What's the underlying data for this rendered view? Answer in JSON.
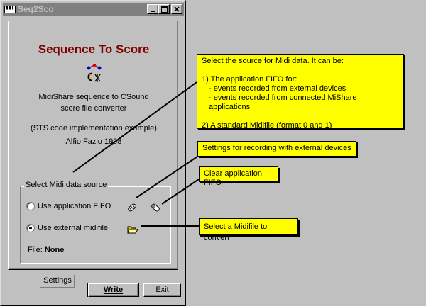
{
  "window": {
    "title": "Seq2Sco",
    "title_icon": "piano-keyboard-icon",
    "buttons": [
      "minimize-icon",
      "maximize-icon",
      "close-icon"
    ]
  },
  "app": {
    "title": "Sequence To Score",
    "logo": "sequence-to-score-logo",
    "subtitle_line1": "MidiShare sequence to CSound",
    "subtitle_line2": "score file converter",
    "note": "(STS code implementation example)",
    "author": "Alfio Fazio 1998"
  },
  "source": {
    "group_label": "Select Midi data source",
    "option_fifo": "Use application FIFO",
    "option_file": "Use external midifile",
    "selected": "file",
    "file_label": "File:",
    "file_value": "None"
  },
  "tabs": [
    {
      "label": "Settings"
    }
  ],
  "buttons": {
    "write": "Write",
    "exit": "Exit"
  },
  "callouts": {
    "source_help": {
      "line1": "Select the source for Midi data.  It can be:",
      "line2": "1) The application FIFO for:",
      "line3": "- events recorded from external devices",
      "line4": "- events recorded from connected MiShare applications",
      "line5": "2) A standard Midifile (format 0 and 1)"
    },
    "settings_help": "Settings for recording with external devices",
    "clear_help": "Clear application FIFO",
    "midifile_help": "Select a Midifile to convert"
  },
  "colors": {
    "desktop": "#c0c0c0",
    "callout": "#ffff00",
    "app_title": "#800000"
  }
}
